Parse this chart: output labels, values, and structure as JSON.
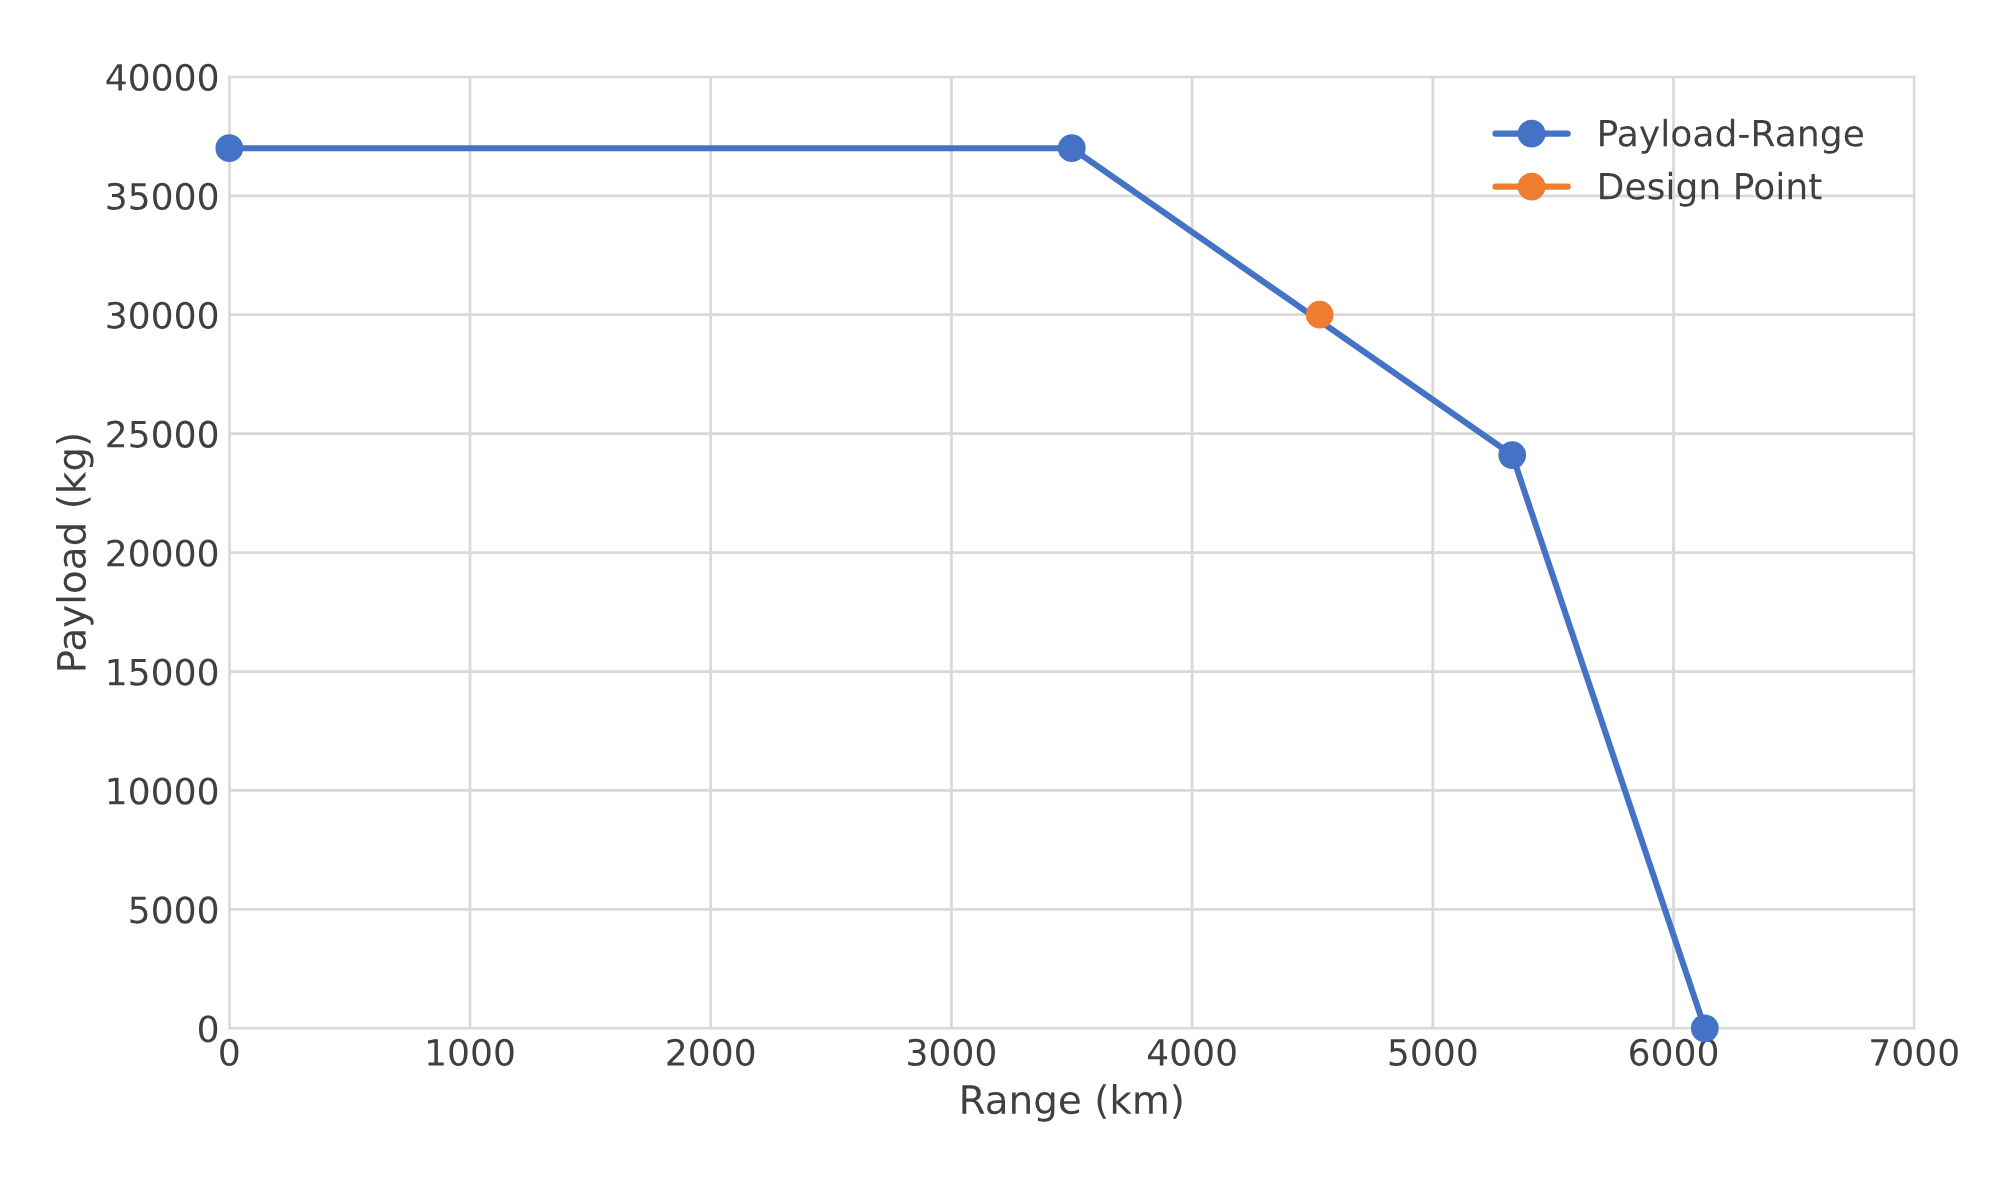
{
  "chart_data": {
    "type": "line",
    "xlabel": "Range (km)",
    "ylabel": "Payload (kg)",
    "series": [
      {
        "name": "Payload-Range",
        "color": "#4472c4",
        "x": [
          0,
          3500,
          5330,
          6130
        ],
        "values": [
          37000,
          37000,
          24100,
          0
        ]
      },
      {
        "name": "Design Point",
        "color": "#ed7d31",
        "x": [
          4530
        ],
        "values": [
          30000
        ]
      }
    ],
    "xlim": [
      0,
      7000
    ],
    "xticks": [
      0,
      1000,
      2000,
      3000,
      4000,
      5000,
      6000,
      7000
    ],
    "ylim": [
      0,
      40000
    ],
    "yticks": [
      0,
      5000,
      10000,
      15000,
      20000,
      25000,
      30000,
      35000,
      40000
    ],
    "grid": true,
    "legend": "top right",
    "marker": "circle",
    "line_style": "solid"
  }
}
